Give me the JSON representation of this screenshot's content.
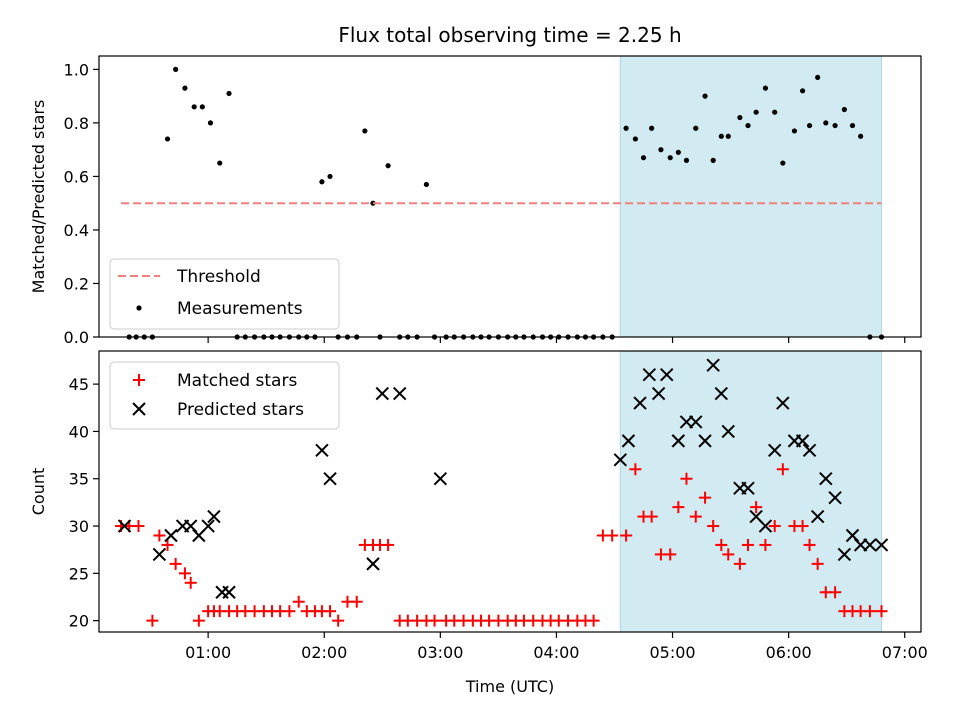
{
  "chart_data": {
    "title": "Flux total observing time = 2.25 h",
    "colors": {
      "threshold": "#f08080",
      "measurement": "#000000",
      "matched": "#ff0000",
      "predicted": "#000000",
      "highlight": "#add8e6"
    },
    "shared_x": {
      "label": "Time (UTC)",
      "unit": "hours after 00:00 UTC",
      "range": [
        0.06,
        7.14
      ],
      "ticks": [
        1,
        2,
        3,
        4,
        5,
        6,
        7
      ],
      "tick_labels": [
        "01:00",
        "02:00",
        "03:00",
        "04:00",
        "05:00",
        "06:00",
        "07:00"
      ]
    },
    "highlight_span": [
      4.55,
      6.8
    ],
    "panels": [
      {
        "name": "ratio",
        "type": "scatter",
        "ylabel": "Matched/Predicted stars",
        "ylim": [
          0,
          1.05
        ],
        "yticks": [
          0.0,
          0.2,
          0.4,
          0.6,
          0.8,
          1.0
        ],
        "ytick_labels": [
          "0.0",
          "0.2",
          "0.4",
          "0.6",
          "0.8",
          "1.0"
        ],
        "legend": {
          "placement": "lower-left",
          "entries": [
            "Threshold",
            "Measurements"
          ]
        },
        "threshold": {
          "name": "Threshold",
          "y": 0.5,
          "x": [
            0.25,
            6.8
          ]
        },
        "measurements": {
          "name": "Measurements",
          "x": [
            0.32,
            0.38,
            0.45,
            0.52,
            0.65,
            0.72,
            0.8,
            0.88,
            0.95,
            1.02,
            1.1,
            1.18,
            1.25,
            1.32,
            1.4,
            1.48,
            1.55,
            1.62,
            1.7,
            1.78,
            1.85,
            1.92,
            1.98,
            2.05,
            2.12,
            2.2,
            2.28,
            2.35,
            2.42,
            2.48,
            2.55,
            2.65,
            2.72,
            2.8,
            2.88,
            2.95,
            3.05,
            3.12,
            3.2,
            3.28,
            3.35,
            3.42,
            3.5,
            3.58,
            3.65,
            3.72,
            3.8,
            3.88,
            3.95,
            4.02,
            4.1,
            4.18,
            4.25,
            4.32,
            4.4,
            4.48,
            4.6,
            4.68,
            4.75,
            4.82,
            4.9,
            4.98,
            5.05,
            5.12,
            5.2,
            5.28,
            5.35,
            5.42,
            5.48,
            5.58,
            5.65,
            5.72,
            5.8,
            5.88,
            5.95,
            6.05,
            6.12,
            6.18,
            6.25,
            6.32,
            6.4,
            6.48,
            6.55,
            6.62,
            6.7,
            6.8
          ],
          "y": [
            0,
            0,
            0,
            0,
            0.74,
            1.0,
            0.93,
            0.86,
            0.86,
            0.8,
            0.65,
            0.91,
            0,
            0,
            0,
            0,
            0,
            0,
            0,
            0,
            0,
            0,
            0.58,
            0.6,
            0,
            0,
            0,
            0.77,
            0.5,
            0,
            0.64,
            0,
            0,
            0,
            0.57,
            0,
            0,
            0,
            0,
            0,
            0,
            0,
            0,
            0,
            0,
            0,
            0,
            0,
            0,
            0,
            0,
            0,
            0,
            0,
            0,
            0,
            0.78,
            0.74,
            0.67,
            0.78,
            0.7,
            0.67,
            0.69,
            0.66,
            0.78,
            0.9,
            0.66,
            0.75,
            0.75,
            0.82,
            0.79,
            0.84,
            0.93,
            0.84,
            0.65,
            0.77,
            0.92,
            0.79,
            0.97,
            0.8,
            0.79,
            0.85,
            0.79,
            0.75,
            0,
            0
          ]
        }
      },
      {
        "name": "counts",
        "type": "scatter",
        "ylabel": "Count",
        "ylim": [
          18.8,
          48.5
        ],
        "yticks": [
          20,
          25,
          30,
          35,
          40,
          45
        ],
        "ytick_labels": [
          "20",
          "25",
          "30",
          "35",
          "40",
          "45"
        ],
        "legend": {
          "placement": "upper-left",
          "entries": [
            "Matched stars",
            "Predicted stars"
          ]
        },
        "matched": {
          "name": "Matched stars",
          "x": [
            0.25,
            0.32,
            0.4,
            0.52,
            0.58,
            0.65,
            0.72,
            0.8,
            0.85,
            0.92,
            1.0,
            1.05,
            1.1,
            1.18,
            1.25,
            1.32,
            1.4,
            1.48,
            1.55,
            1.62,
            1.7,
            1.78,
            1.85,
            1.92,
            1.98,
            2.05,
            2.12,
            2.2,
            2.28,
            2.35,
            2.42,
            2.48,
            2.55,
            2.65,
            2.72,
            2.8,
            2.88,
            2.95,
            3.05,
            3.12,
            3.2,
            3.28,
            3.35,
            3.42,
            3.5,
            3.58,
            3.65,
            3.72,
            3.8,
            3.88,
            3.95,
            4.02,
            4.1,
            4.18,
            4.25,
            4.32,
            4.4,
            4.48,
            4.6,
            4.68,
            4.75,
            4.82,
            4.9,
            4.98,
            5.05,
            5.12,
            5.2,
            5.28,
            5.35,
            5.42,
            5.48,
            5.58,
            5.65,
            5.72,
            5.8,
            5.88,
            5.95,
            6.05,
            6.12,
            6.18,
            6.25,
            6.32,
            6.4,
            6.48,
            6.55,
            6.62,
            6.7,
            6.8
          ],
          "y": [
            30,
            30,
            30,
            20,
            29,
            28,
            26,
            25,
            24,
            20,
            21,
            21,
            21,
            21,
            21,
            21,
            21,
            21,
            21,
            21,
            21,
            22,
            21,
            21,
            21,
            21,
            20,
            22,
            22,
            28,
            28,
            28,
            28,
            20,
            20,
            20,
            20,
            20,
            20,
            20,
            20,
            20,
            20,
            20,
            20,
            20,
            20,
            20,
            20,
            20,
            20,
            20,
            20,
            20,
            20,
            20,
            29,
            29,
            29,
            36,
            31,
            31,
            27,
            27,
            32,
            35,
            31,
            33,
            30,
            28,
            27,
            26,
            28,
            32,
            28,
            30,
            36,
            30,
            30,
            28,
            26,
            23,
            23,
            21,
            21,
            21,
            21,
            21
          ],
          "note_x_alignment": "x for matched as listed"
        },
        "predicted": {
          "name": "Predicted stars",
          "x": [
            0.28,
            0.58,
            0.68,
            0.78,
            0.85,
            0.92,
            1.0,
            1.05,
            1.12,
            1.18,
            1.98,
            2.05,
            2.42,
            2.5,
            2.65,
            3.0,
            4.55,
            4.62,
            4.72,
            4.8,
            4.88,
            4.95,
            5.05,
            5.12,
            5.2,
            5.28,
            5.35,
            5.42,
            5.48,
            5.58,
            5.65,
            5.72,
            5.8,
            5.88,
            5.95,
            6.05,
            6.12,
            6.18,
            6.25,
            6.32,
            6.4,
            6.48,
            6.55,
            6.62,
            6.7,
            6.8
          ],
          "y": [
            30,
            27,
            29,
            30,
            30,
            29,
            30,
            31,
            23,
            23,
            38,
            35,
            26,
            44,
            44,
            35,
            37,
            39,
            43,
            46,
            44,
            46,
            39,
            41,
            41,
            39,
            47,
            44,
            40,
            34,
            34,
            31,
            30,
            38,
            43,
            39,
            39,
            38,
            31,
            35,
            33,
            27,
            29,
            28,
            28,
            28
          ]
        }
      }
    ]
  }
}
